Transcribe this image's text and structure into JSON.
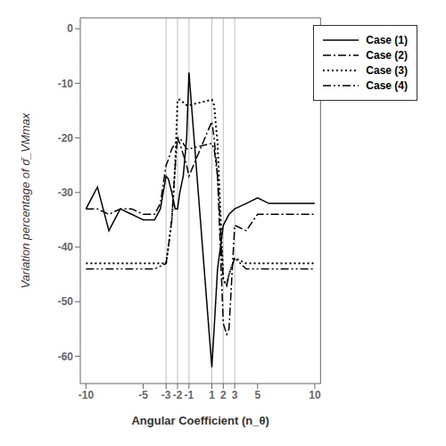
{
  "chart_data": {
    "type": "line",
    "xlabel": "Angular Coefficient (n_θ)",
    "ylabel": "Variation percentage of σ̄_VMmax",
    "xlim": [
      -10.5,
      10.5
    ],
    "ylim": [
      -65,
      2
    ],
    "xticks": [
      -10,
      -5,
      -3,
      -2,
      -1,
      1,
      2,
      3,
      5,
      10
    ],
    "yticks": [
      0,
      -10,
      -20,
      -30,
      -40,
      -50,
      -60
    ],
    "vlines": [
      -3,
      -2,
      -1,
      1,
      2,
      3
    ],
    "legend": "upper right",
    "series": [
      {
        "name": "Case (1)",
        "color": "black",
        "line_style": "solid",
        "x": [
          -10,
          -9.5,
          -9,
          -8.5,
          -8,
          -7.5,
          -7,
          -6.5,
          -6,
          -5.5,
          -5,
          -4.5,
          -4,
          -3.5,
          -3,
          -2.8,
          -2.5,
          -2.2,
          -2,
          -1.8,
          -1.5,
          -1.2,
          -1,
          1,
          1.2,
          1.5,
          2,
          2.5,
          3,
          3.5,
          4,
          5,
          6,
          7,
          8,
          9,
          10
        ],
        "values": [
          -33,
          -31,
          -29,
          -33,
          -37,
          -35,
          -33,
          -33.5,
          -34,
          -34.5,
          -35,
          -35,
          -35,
          -33,
          -27,
          -27.5,
          -30,
          -33,
          -33,
          -30,
          -27,
          -20,
          -8,
          -62,
          -55,
          -44,
          -36,
          -34,
          -33,
          -32.5,
          -32,
          -31,
          -32,
          -32,
          -32,
          -32,
          -32
        ]
      },
      {
        "name": "Case (2)",
        "color": "black",
        "line_style": "dashdot",
        "x": [
          -10,
          -9,
          -8,
          -7,
          -6,
          -5,
          -4.5,
          -4,
          -3.5,
          -3,
          -2.8,
          -2.5,
          -2.2,
          -2,
          -1.8,
          -1.5,
          -1.2,
          -1,
          1,
          1.2,
          1.5,
          2,
          2.3,
          2.5,
          3,
          4,
          5,
          6,
          7,
          8,
          9,
          10
        ],
        "values": [
          -33,
          -33,
          -34,
          -33,
          -33,
          -34,
          -34,
          -34,
          -32,
          -25,
          -24,
          -22,
          -21,
          -20,
          -21,
          -23,
          -25,
          -27,
          -17,
          -20,
          -27,
          -54,
          -56,
          -55,
          -36,
          -37,
          -34,
          -34,
          -34,
          -34,
          -34,
          -34
        ]
      },
      {
        "name": "Case (3)",
        "color": "black",
        "line_style": "dotted",
        "x": [
          -10,
          -9,
          -8,
          -7,
          -6,
          -5,
          -4,
          -3,
          -2.8,
          -2.5,
          -2.2,
          -2,
          -1.8,
          -1.5,
          -1.2,
          -1,
          1,
          1.2,
          1.5,
          2,
          2.3,
          2.5,
          3,
          4,
          5,
          6,
          7,
          8,
          9,
          10
        ],
        "values": [
          -43,
          -43,
          -43,
          -43,
          -43,
          -43,
          -43,
          -43,
          -40,
          -35,
          -25,
          -13,
          -13,
          -13.5,
          -14,
          -14,
          -13,
          -14,
          -21,
          -46,
          -47,
          -45,
          -42,
          -43,
          -43,
          -43,
          -43,
          -43,
          -43,
          -43
        ]
      },
      {
        "name": "Case (4)",
        "color": "black",
        "line_style": "dashdotdot",
        "x": [
          -10,
          -9,
          -8,
          -7,
          -6,
          -5,
          -4,
          -3,
          -2.8,
          -2.5,
          -2.2,
          -2,
          -1.8,
          -1.5,
          -1.2,
          -1,
          1,
          1.2,
          1.5,
          2,
          2.3,
          2.5,
          3,
          4,
          5,
          6,
          7,
          8,
          9,
          10
        ],
        "values": [
          -44,
          -44,
          -44,
          -44,
          -44,
          -44,
          -44,
          -43,
          -40,
          -35,
          -25,
          -20,
          -20,
          -21,
          -22,
          -22,
          -21,
          -22,
          -27,
          -46,
          -47,
          -45,
          -42,
          -44,
          -44,
          -44,
          -44,
          -44,
          -44,
          -44
        ]
      }
    ]
  }
}
